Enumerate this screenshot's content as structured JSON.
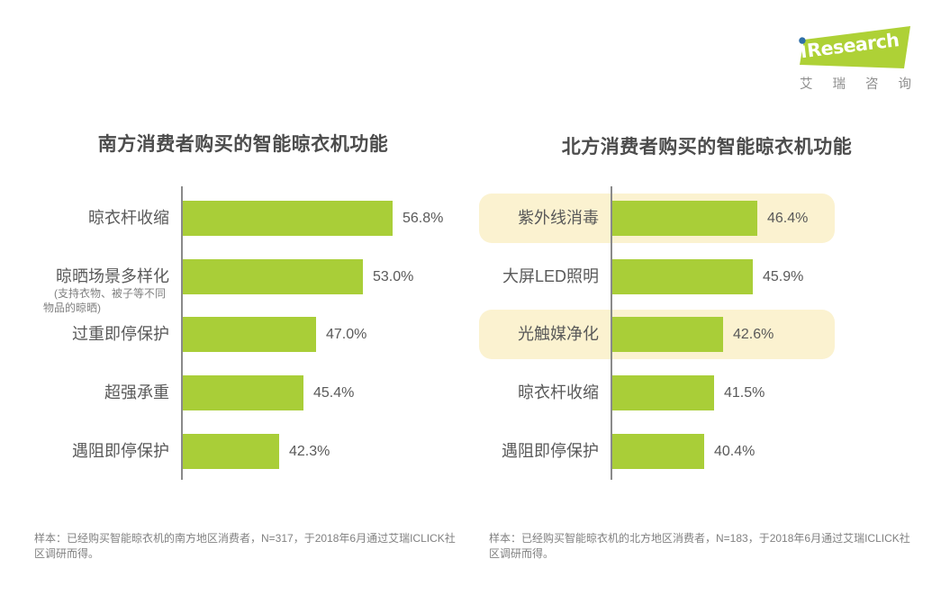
{
  "logo": {
    "brand_i": "i",
    "brand_rest": "Research",
    "subtitle": "艾瑞咨询",
    "green": "#AED136",
    "dot_blue": "#2F6EA8"
  },
  "colors": {
    "bar_green": "#A9CE38",
    "highlight_cream": "#FBF2D0",
    "axis_gray": "#8A8A8A"
  },
  "chart_data": [
    {
      "type": "bar",
      "orientation": "horizontal",
      "title": "南方消费者购买的智能晾衣机功能",
      "categories": [
        "晾衣杆收缩",
        "晾晒场景多样化",
        "过重即停保护",
        "超强承重",
        "遇阻即停保护"
      ],
      "values": [
        56.8,
        53.0,
        47.0,
        45.4,
        42.3
      ],
      "value_labels": [
        "56.8%",
        "53.0%",
        "47.0%",
        "45.4%",
        "42.3%"
      ],
      "sublabels": {
        "1": "(支持衣物、被子等不同物品的晾晒)"
      },
      "highlighted": [],
      "bar_color": "#A9CE38",
      "axis_baseline_percent": 30,
      "grid": false,
      "legend": false,
      "footnote": "样本：已经购买智能晾衣机的南方地区消费者，N=317，于2018年6月通过艾瑞ICLICK社区调研而得。"
    },
    {
      "type": "bar",
      "orientation": "horizontal",
      "title": "北方消费者购买的智能晾衣机功能",
      "categories": [
        "紫外线消毒",
        "大屏LED照明",
        "光触媒净化",
        "晾衣杆收缩",
        "遇阻即停保护"
      ],
      "values": [
        46.4,
        45.9,
        42.6,
        41.5,
        40.4
      ],
      "value_labels": [
        "46.4%",
        "45.9%",
        "42.6%",
        "41.5%",
        "40.4%"
      ],
      "sublabels": {},
      "highlighted": [
        0,
        2
      ],
      "highlight_color": "#FBF2D0",
      "bar_color": "#A9CE38",
      "axis_baseline_percent": 30,
      "grid": false,
      "legend": false,
      "footnote": "样本：已经购买智能晾衣机的北方地区消费者，N=183，于2018年6月通过艾瑞ICLICK社区调研而得。"
    }
  ]
}
